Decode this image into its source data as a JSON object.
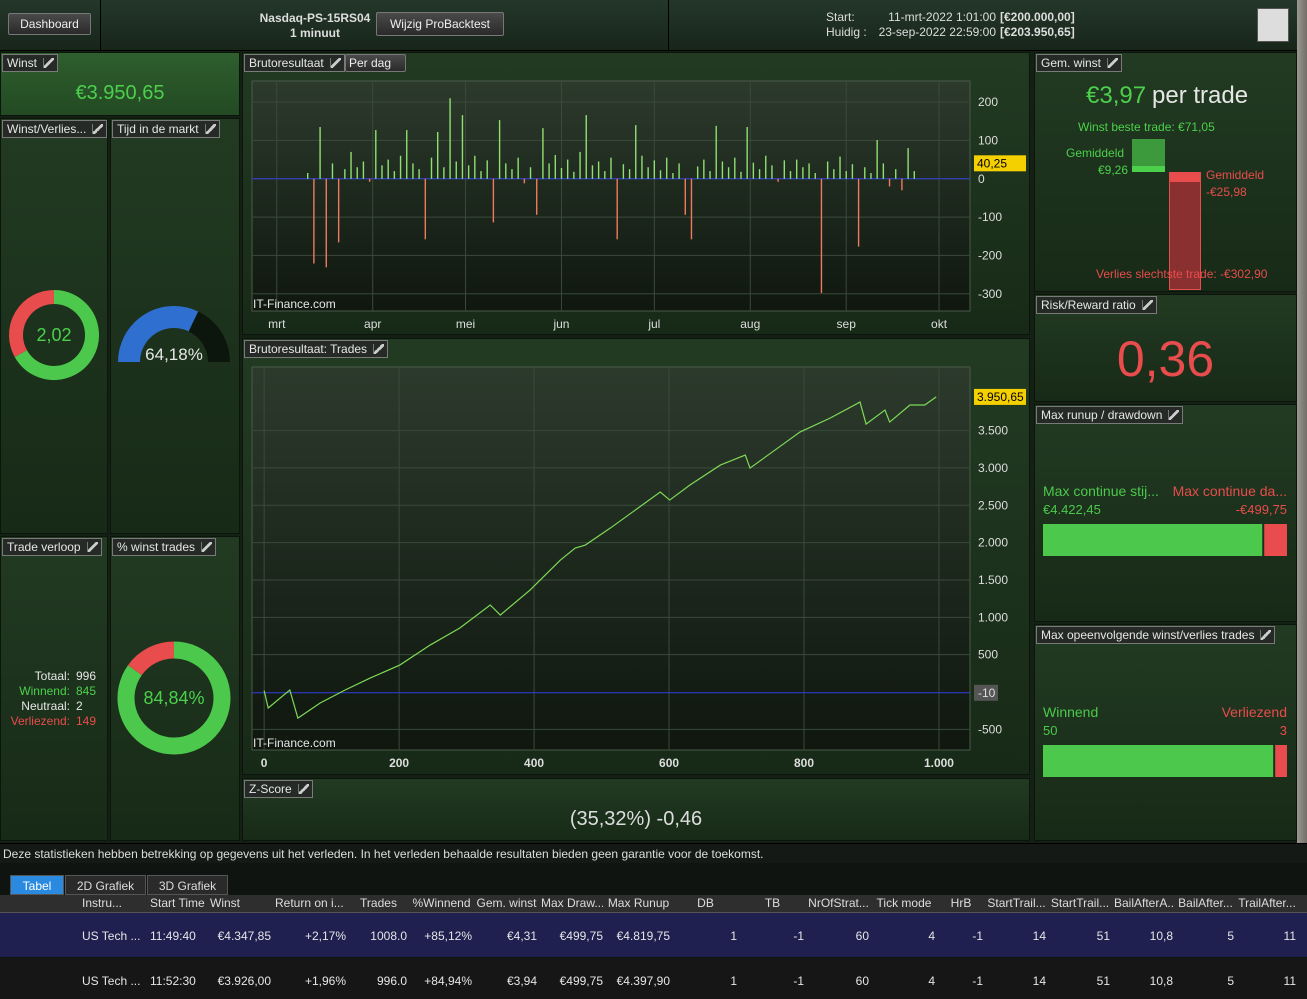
{
  "topbar": {
    "dashboard": "Dashboard",
    "strategy": "Nasdaq-PS-15RS04",
    "timeframe": "1 minuut",
    "button": "Wijzig ProBacktest",
    "start_label": "Start:",
    "start_date": "11-mrt-2022 1:01:00",
    "start_capital": "[€200.000,00]",
    "current_label": "Huidig :",
    "current_date": "23-sep-2022 22:59:00",
    "current_capital": "[€203.950,65]"
  },
  "winst": {
    "title": "Winst",
    "value": "€3.950,65"
  },
  "winst_verlies": {
    "title": "Winst/Verlies...",
    "value": 2.02,
    "value_label": "2,02",
    "colors": [
      "#4cc94c",
      "#e84c4c"
    ]
  },
  "tijd": {
    "title": "Tijd in de markt",
    "value": 64.18,
    "value_label": "64,18%",
    "colors": [
      "#2f6fd0",
      "#0c160c"
    ]
  },
  "trade_verloop": {
    "title": "Trade verloop",
    "rows": [
      [
        "Totaal:",
        "996"
      ],
      [
        "Winnend:",
        "845"
      ],
      [
        "Neutraal:",
        "2"
      ],
      [
        "Verliezend:",
        "149"
      ]
    ]
  },
  "pct_winst": {
    "title": "% winst trades",
    "value": 84.84,
    "value_label": "84,84%",
    "colors": [
      "#4cc94c",
      "#e84c4c"
    ]
  },
  "daily_chart": {
    "type": "bar",
    "title": "Brutoresultaat",
    "mode": "Per dag",
    "watermark": "IT-Finance.com",
    "colors": {
      "positive": "#8ee070",
      "negative": "#f07a5f"
    },
    "x": [
      70,
      72,
      74,
      76,
      78,
      80,
      82,
      84,
      86,
      88,
      90,
      92,
      94,
      96,
      98,
      100,
      102,
      104,
      106,
      108,
      110,
      112,
      114,
      116,
      118,
      120,
      122,
      124,
      126,
      128,
      130,
      132,
      134,
      136,
      138,
      140,
      142,
      144,
      146,
      148,
      150,
      152,
      154,
      156,
      158,
      160,
      162,
      164,
      166,
      168,
      170,
      172,
      174,
      176,
      178,
      180,
      182,
      184,
      186,
      188,
      190,
      192,
      194,
      196,
      198,
      200,
      202,
      204,
      206,
      208,
      210,
      212,
      214,
      216,
      218,
      220,
      222,
      224,
      226,
      228,
      230,
      232,
      234,
      236,
      238,
      240,
      242,
      244,
      246,
      248,
      250,
      252,
      254,
      256,
      258,
      260,
      262,
      264,
      266
    ],
    "values": [
      15,
      -221,
      135,
      -231,
      40,
      -166,
      25,
      70,
      30,
      45,
      -8,
      127,
      35,
      50,
      20,
      60,
      127,
      40,
      25,
      -158,
      55,
      122,
      30,
      210,
      45,
      166,
      35,
      60,
      20,
      48,
      -114,
      153,
      40,
      25,
      55,
      -12,
      30,
      -94,
      132,
      40,
      62,
      28,
      50,
      18,
      70,
      166,
      35,
      45,
      20,
      55,
      -158,
      38,
      25,
      140,
      60,
      30,
      48,
      22,
      55,
      15,
      40,
      -94,
      -158,
      32,
      50,
      20,
      138,
      45,
      30,
      55,
      18,
      135,
      42,
      25,
      60,
      35,
      -8,
      48,
      20,
      50,
      30,
      40,
      15,
      -298,
      45,
      25,
      58,
      20,
      38,
      -177,
      30,
      15,
      101,
      40,
      -20,
      25,
      -30,
      80,
      20
    ],
    "xlim": [
      52,
      284
    ],
    "xticks": [
      {
        "value": 60,
        "label": "mrt"
      },
      {
        "value": 91,
        "label": "apr"
      },
      {
        "value": 121,
        "label": "mei"
      },
      {
        "value": 152,
        "label": "jun"
      },
      {
        "value": 182,
        "label": "jul"
      },
      {
        "value": 213,
        "label": "aug"
      },
      {
        "value": 244,
        "label": "sep"
      },
      {
        "value": 274,
        "label": "okt"
      }
    ],
    "ylim": [
      -345,
      255
    ],
    "yticks": [
      200,
      100,
      0,
      -100,
      -200,
      -300
    ],
    "current": {
      "value": 40.25,
      "label": "40,25"
    }
  },
  "equity_chart": {
    "type": "line",
    "title": "Brutoresultaat: Trades",
    "watermark": "IT-Finance.com",
    "color": "#7ed957",
    "x": [
      0,
      6,
      38,
      50,
      83,
      120,
      157,
      201,
      246,
      290,
      335,
      350,
      394,
      439,
      461,
      476,
      513,
      550,
      587,
      601,
      631,
      676,
      713,
      720,
      757,
      794,
      839,
      883,
      892,
      920,
      927,
      957,
      979,
      996
    ],
    "values": [
      20,
      -214,
      27,
      -350,
      -147,
      27,
      187,
      361,
      629,
      857,
      1165,
      1031,
      1365,
      1767,
      1928,
      1968,
      2195,
      2436,
      2677,
      2570,
      2771,
      3038,
      3172,
      2998,
      3239,
      3480,
      3668,
      3882,
      3587,
      3775,
      3614,
      3842,
      3842,
      3950.65
    ],
    "xlim": [
      -18,
      1046
    ],
    "xticks": [
      0,
      200,
      400,
      600,
      800,
      {
        "value": 1000,
        "label": "1.000"
      }
    ],
    "ylim": [
      -776,
      4351
    ],
    "yticks": [
      {
        "value": 3500,
        "label": "3.500"
      },
      {
        "value": 3000,
        "label": "3.000"
      },
      {
        "value": 2500,
        "label": "2.500"
      },
      {
        "value": 2000,
        "label": "2.000"
      },
      {
        "value": 1500,
        "label": "1.500"
      },
      {
        "value": 1000,
        "label": "1.000"
      },
      500,
      -500
    ],
    "current": {
      "value": 3950.65,
      "label": "3.950,65"
    },
    "baseline": {
      "value": -10,
      "label": "-10"
    }
  },
  "zscore": {
    "title": "Z-Score",
    "value": "(35,32%) -0,46"
  },
  "gem_winst": {
    "title": "Gem. winst",
    "value": "€3,97",
    "unit": "per trade",
    "best": "Winst beste trade: €71,05",
    "avg_win_label": "Gemiddeld",
    "avg_win": "€9,26",
    "avg_loss_label": "Gemiddeld",
    "avg_loss": "-€25,98",
    "worst": "Verlies slechtste trade: -€302,90"
  },
  "risk_reward": {
    "title": "Risk/Reward ratio",
    "value": "0,36"
  },
  "runup": {
    "title": "Max runup / drawdown",
    "series": [
      {
        "name": "Max continue stij...",
        "value": 4422.45,
        "value_label": "€4.422,45",
        "color": "#4cc94c"
      },
      {
        "name": "Max continue da...",
        "value": -499.75,
        "value_label": "-€499,75",
        "color": "#e84c4c"
      }
    ]
  },
  "streaks": {
    "title": "Max opeenvolgende winst/verlies trades",
    "series": [
      {
        "name": "Winnend",
        "value": 50,
        "color": "#4cc94c"
      },
      {
        "name": "Verliezend",
        "value": 3,
        "color": "#e84c4c"
      }
    ]
  },
  "disclaimer": "Deze statistieken hebben betrekking op gegevens uit het verleden. In het verleden behaalde resultaten bieden geen garantie voor de toekomst.",
  "tabs": [
    "Tabel",
    "2D Grafiek",
    "3D Grafiek"
  ],
  "table": {
    "columns": [
      "Instru...",
      "Start Time",
      "Winst",
      "Return on i...",
      "Trades",
      "%Winnend",
      "Gem. winst",
      "Max Draw...",
      "Max Runup",
      "DB",
      "TB",
      "NrOfStrat...",
      "Tick mode",
      "HrB",
      "StartTrail...",
      "StartTrail...",
      "BailAfterA...",
      "BailAfter...",
      "TrailAfter..."
    ],
    "rows": [
      [
        "US Tech ...",
        "11:49:40",
        "€4.347,85",
        "+2,17%",
        "1008.0",
        "+85,12%",
        "€4,31",
        "€499,75",
        "€4.819,75",
        "1",
        "-1",
        "60",
        "4",
        "-1",
        "14",
        "51",
        "10,8",
        "5",
        "11"
      ],
      [
        "US Tech ...",
        "11:52:30",
        "€3.926,00",
        "+1,96%",
        "996.0",
        "+84,94%",
        "€3,94",
        "€499,75",
        "€4.397,90",
        "1",
        "-1",
        "60",
        "4",
        "-1",
        "14",
        "51",
        "10,8",
        "5",
        "11"
      ]
    ]
  }
}
